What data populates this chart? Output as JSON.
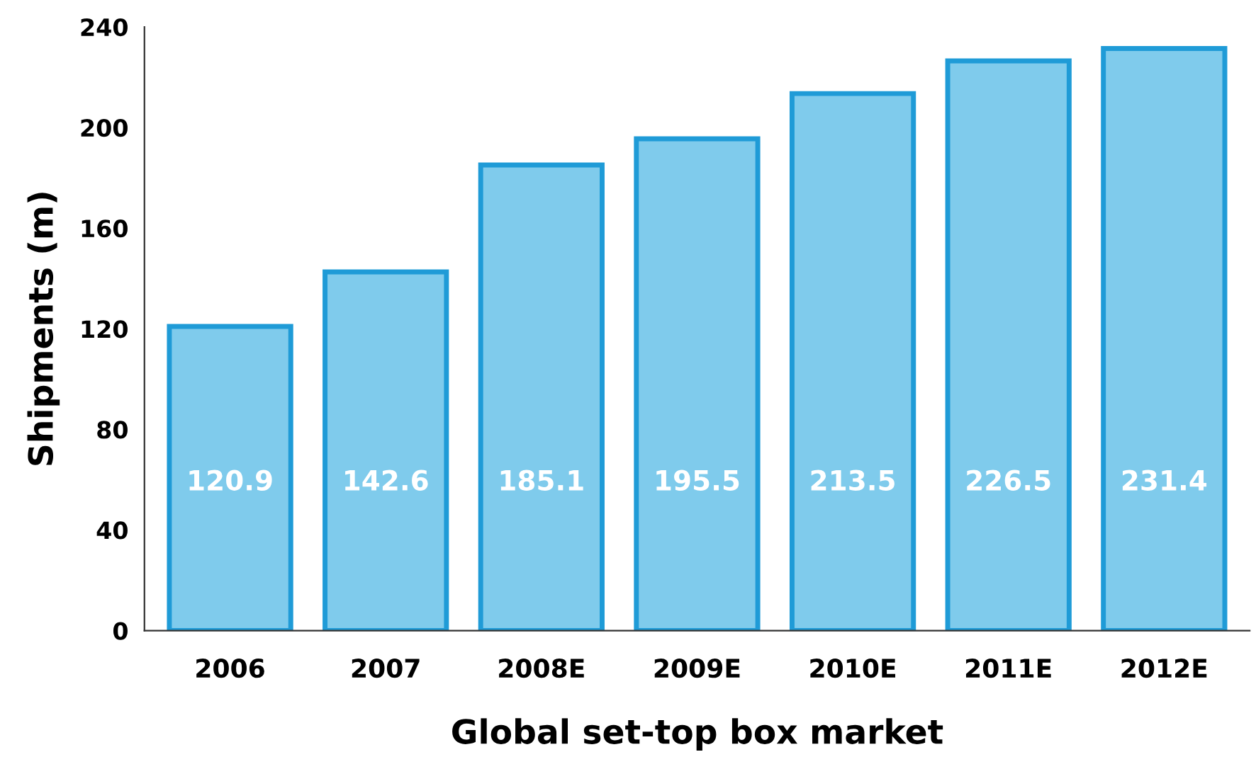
{
  "chart_data": {
    "type": "bar",
    "xlabel": "Global set-top box market",
    "ylabel": "Shipments (m)",
    "categories": [
      "2006",
      "2007",
      "2008E",
      "2009E",
      "2010E",
      "2011E",
      "2012E"
    ],
    "values": [
      120.9,
      142.6,
      185.1,
      195.5,
      213.5,
      226.5,
      231.4
    ],
    "color": "#7fcbec",
    "ylim": [
      0,
      240
    ],
    "yticks": [
      0,
      40,
      80,
      120,
      160,
      200,
      240
    ],
    "data_labels": true,
    "grid": false,
    "legend": false
  }
}
